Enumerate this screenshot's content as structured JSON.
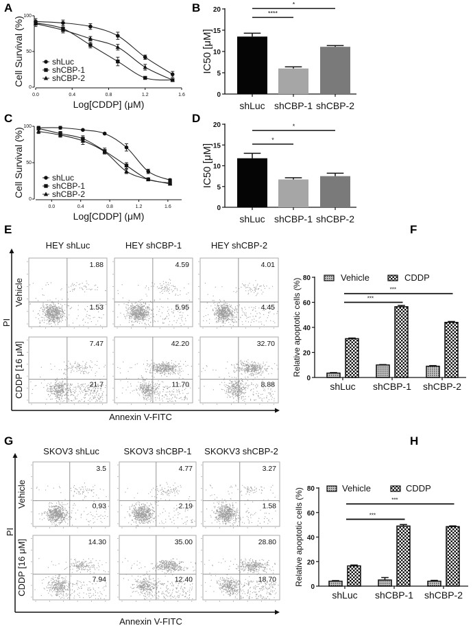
{
  "panel_labels": [
    "A",
    "B",
    "C",
    "D",
    "E",
    "F",
    "G",
    "H"
  ],
  "chart_data": [
    {
      "panel": "A",
      "type": "line",
      "xlabel": "Log[CDDP] (μM)",
      "ylabel": "Cell Survival (%)",
      "xlim": [
        0,
        1.6
      ],
      "ylim": [
        0,
        100
      ],
      "xtick_values": [
        0,
        0.4,
        0.8,
        1.2,
        1.6
      ],
      "xtick_labels": [
        "0.0",
        "0.4",
        "0.8",
        "1.2",
        "1.6"
      ],
      "ytick_values": [
        0,
        50,
        100
      ],
      "ytick_labels": [
        "0",
        "50",
        "100"
      ],
      "x": [
        0,
        0.3,
        0.6,
        0.9,
        1.2,
        1.5
      ],
      "legend": "bottom-left",
      "series": [
        {
          "name": "shLuc",
          "marker": "circle",
          "y": [
            92,
            90,
            85,
            72,
            42,
            18
          ],
          "err": [
            4,
            4,
            4,
            5,
            3,
            4
          ]
        },
        {
          "name": "shCBP-1",
          "marker": "square",
          "y": [
            90,
            82,
            59,
            36,
            13,
            10
          ],
          "err": [
            3,
            4,
            4,
            6,
            2,
            2
          ]
        },
        {
          "name": "shCBP-2",
          "marker": "triangle",
          "y": [
            89,
            80,
            68,
            56,
            28,
            10
          ],
          "err": [
            4,
            4,
            3,
            4,
            4,
            2
          ]
        }
      ]
    },
    {
      "panel": "B",
      "type": "bar",
      "ylabel": "IC50 [μM]",
      "ylim": [
        0,
        20
      ],
      "ytick_values": [
        0,
        5,
        10,
        15,
        20
      ],
      "ytick_labels": [
        "0",
        "5",
        "10",
        "15",
        "20"
      ],
      "categories": [
        "shLuc",
        "shCBP-1",
        "shCBP-2"
      ],
      "values": [
        13.5,
        6.0,
        11.1
      ],
      "err": [
        0.8,
        0.4,
        0.3
      ],
      "colors": [
        "#050505",
        "#a6a6a6",
        "#7a7a7a"
      ],
      "comparisons": [
        {
          "from": 0,
          "to": 2,
          "label": "*",
          "y": 20.1
        },
        {
          "from": 0,
          "to": 1,
          "label": "****",
          "y": 18.0
        }
      ]
    },
    {
      "panel": "C",
      "type": "line",
      "xlabel": "Log[CDDP] (μM)",
      "ylabel": "Cell Survival (%)",
      "xlim": [
        -0.22,
        1.79
      ],
      "ylim": [
        0,
        100
      ],
      "xtick_values": [
        0,
        0.4,
        0.8,
        1.2,
        1.6
      ],
      "xtick_labels": [
        "0.0",
        "0.4",
        "0.8",
        "1.2",
        "1.6"
      ],
      "ytick_values": [
        0,
        50,
        100
      ],
      "ytick_labels": [
        "0",
        "50",
        "100"
      ],
      "x": [
        -0.18,
        0.12,
        0.43,
        0.73,
        1.03,
        1.33,
        1.63
      ],
      "legend": "bottom-left",
      "series": [
        {
          "name": "shLuc",
          "marker": "circle",
          "y": [
            98,
            98,
            95,
            90,
            71,
            38,
            26
          ],
          "err": [
            2,
            2,
            1,
            1,
            5,
            3,
            2
          ]
        },
        {
          "name": "shCBP-1",
          "marker": "square",
          "y": [
            97,
            90,
            83,
            66,
            46,
            27,
            22
          ],
          "err": [
            2,
            3,
            4,
            4,
            4,
            2,
            2
          ]
        },
        {
          "name": "shCBP-2",
          "marker": "triangle",
          "y": [
            93,
            88,
            80,
            65,
            38,
            27,
            21
          ],
          "err": [
            3,
            3,
            5,
            3,
            3,
            2,
            2
          ]
        }
      ]
    },
    {
      "panel": "D",
      "type": "bar",
      "ylabel": "IC50 [μM]",
      "ylim": [
        0,
        20
      ],
      "ytick_values": [
        0,
        5,
        10,
        15,
        20
      ],
      "ytick_labels": [
        "0",
        "5",
        "10",
        "15",
        "20"
      ],
      "categories": [
        "shLuc",
        "shCBP-1",
        "shCBP-2"
      ],
      "values": [
        11.8,
        6.7,
        7.5
      ],
      "err": [
        1.2,
        0.4,
        0.7
      ],
      "colors": [
        "#050505",
        "#a6a6a6",
        "#7a7a7a"
      ],
      "comparisons": [
        {
          "from": 0,
          "to": 2,
          "label": "*",
          "y": 18.5
        },
        {
          "from": 0,
          "to": 1,
          "label": "*",
          "y": 15.2
        }
      ]
    },
    {
      "panel": "F",
      "type": "bar",
      "ylabel": "Relative apoptotic cells (%)",
      "ylim": [
        0,
        80
      ],
      "ytick_values": [
        0,
        20,
        40,
        60,
        80
      ],
      "ytick_labels": [
        "0",
        "20",
        "40",
        "60",
        "80"
      ],
      "categories": [
        "shLuc",
        "shCBP-1",
        "shCBP-2"
      ],
      "legend": "top",
      "series": [
        {
          "name": "Vehicle",
          "pattern": "fine-dots",
          "values": [
            3.5,
            10.0,
            9.0
          ],
          "err": [
            0.4,
            0.3,
            0.5
          ]
        },
        {
          "name": "CDDP",
          "pattern": "checkerboard",
          "values": [
            31.0,
            56.5,
            44.0
          ],
          "err": [
            0.5,
            1.0,
            0.7
          ]
        }
      ],
      "comparisons": [
        {
          "from": 0,
          "to": 1,
          "label": "***",
          "y": 60
        },
        {
          "from": 0,
          "to": 2,
          "label": "***",
          "y": 67
        }
      ]
    },
    {
      "panel": "H",
      "type": "bar",
      "ylabel": "Relative apoptotic cells (%)",
      "ylim": [
        0,
        80
      ],
      "ytick_values": [
        0,
        20,
        40,
        60,
        80
      ],
      "ytick_labels": [
        "0",
        "20",
        "40",
        "60",
        "80"
      ],
      "categories": [
        "shLuc",
        "shCBP-1",
        "shCBP-2"
      ],
      "legend": "top",
      "series": [
        {
          "name": "Vehicle",
          "pattern": "fine-dots",
          "values": [
            4.0,
            5.0,
            4.0
          ],
          "err": [
            0.5,
            2.0,
            0.7
          ]
        },
        {
          "name": "CDDP",
          "pattern": "checkerboard",
          "values": [
            16.5,
            49.0,
            48.5
          ],
          "err": [
            0.7,
            1.2,
            0.6
          ]
        }
      ],
      "comparisons": [
        {
          "from": 0,
          "to": 1,
          "label": "***",
          "y": 54.5
        },
        {
          "from": 0,
          "to": 2,
          "label": "***",
          "y": 67
        }
      ]
    }
  ],
  "flow": [
    {
      "panel": "E",
      "xlabel": "Annexin V-FITC",
      "ylabel": "PI",
      "columns": [
        "HEY shLuc",
        "HEY shCBP-1",
        "HEY shCBP-2"
      ],
      "rows": [
        "Vehicle",
        "CDDP [16 μM]"
      ],
      "quadrants": [
        [
          {
            "upper_right": "1.88",
            "lower_right": "1.53"
          },
          {
            "upper_right": "4.59",
            "lower_right": "5.95"
          },
          {
            "upper_right": "4.01",
            "lower_right": "4.45"
          }
        ],
        [
          {
            "upper_right": "7.47",
            "lower_right": "21.7"
          },
          {
            "upper_right": "42.20",
            "lower_right": "11.70"
          },
          {
            "upper_right": "32.70",
            "lower_right": "8.88"
          }
        ]
      ]
    },
    {
      "panel": "G",
      "xlabel": "Annexin V-FITC",
      "ylabel": "PI",
      "columns": [
        "SKOV3 shLuc",
        "SKOV3 shCBP-1",
        "SKOKV3 shCBP-2"
      ],
      "rows": [
        "Vehicle",
        "CDDP [16 μM]"
      ],
      "quadrants": [
        [
          {
            "upper_right": "3.5",
            "lower_right": "0.93"
          },
          {
            "upper_right": "4.77",
            "lower_right": "2.19"
          },
          {
            "upper_right": "3.27",
            "lower_right": "1.58"
          }
        ],
        [
          {
            "upper_right": "14.30",
            "lower_right": "7.94"
          },
          {
            "upper_right": "35.00",
            "lower_right": "12.40"
          },
          {
            "upper_right": "28.80",
            "lower_right": "18.70"
          }
        ]
      ]
    }
  ]
}
